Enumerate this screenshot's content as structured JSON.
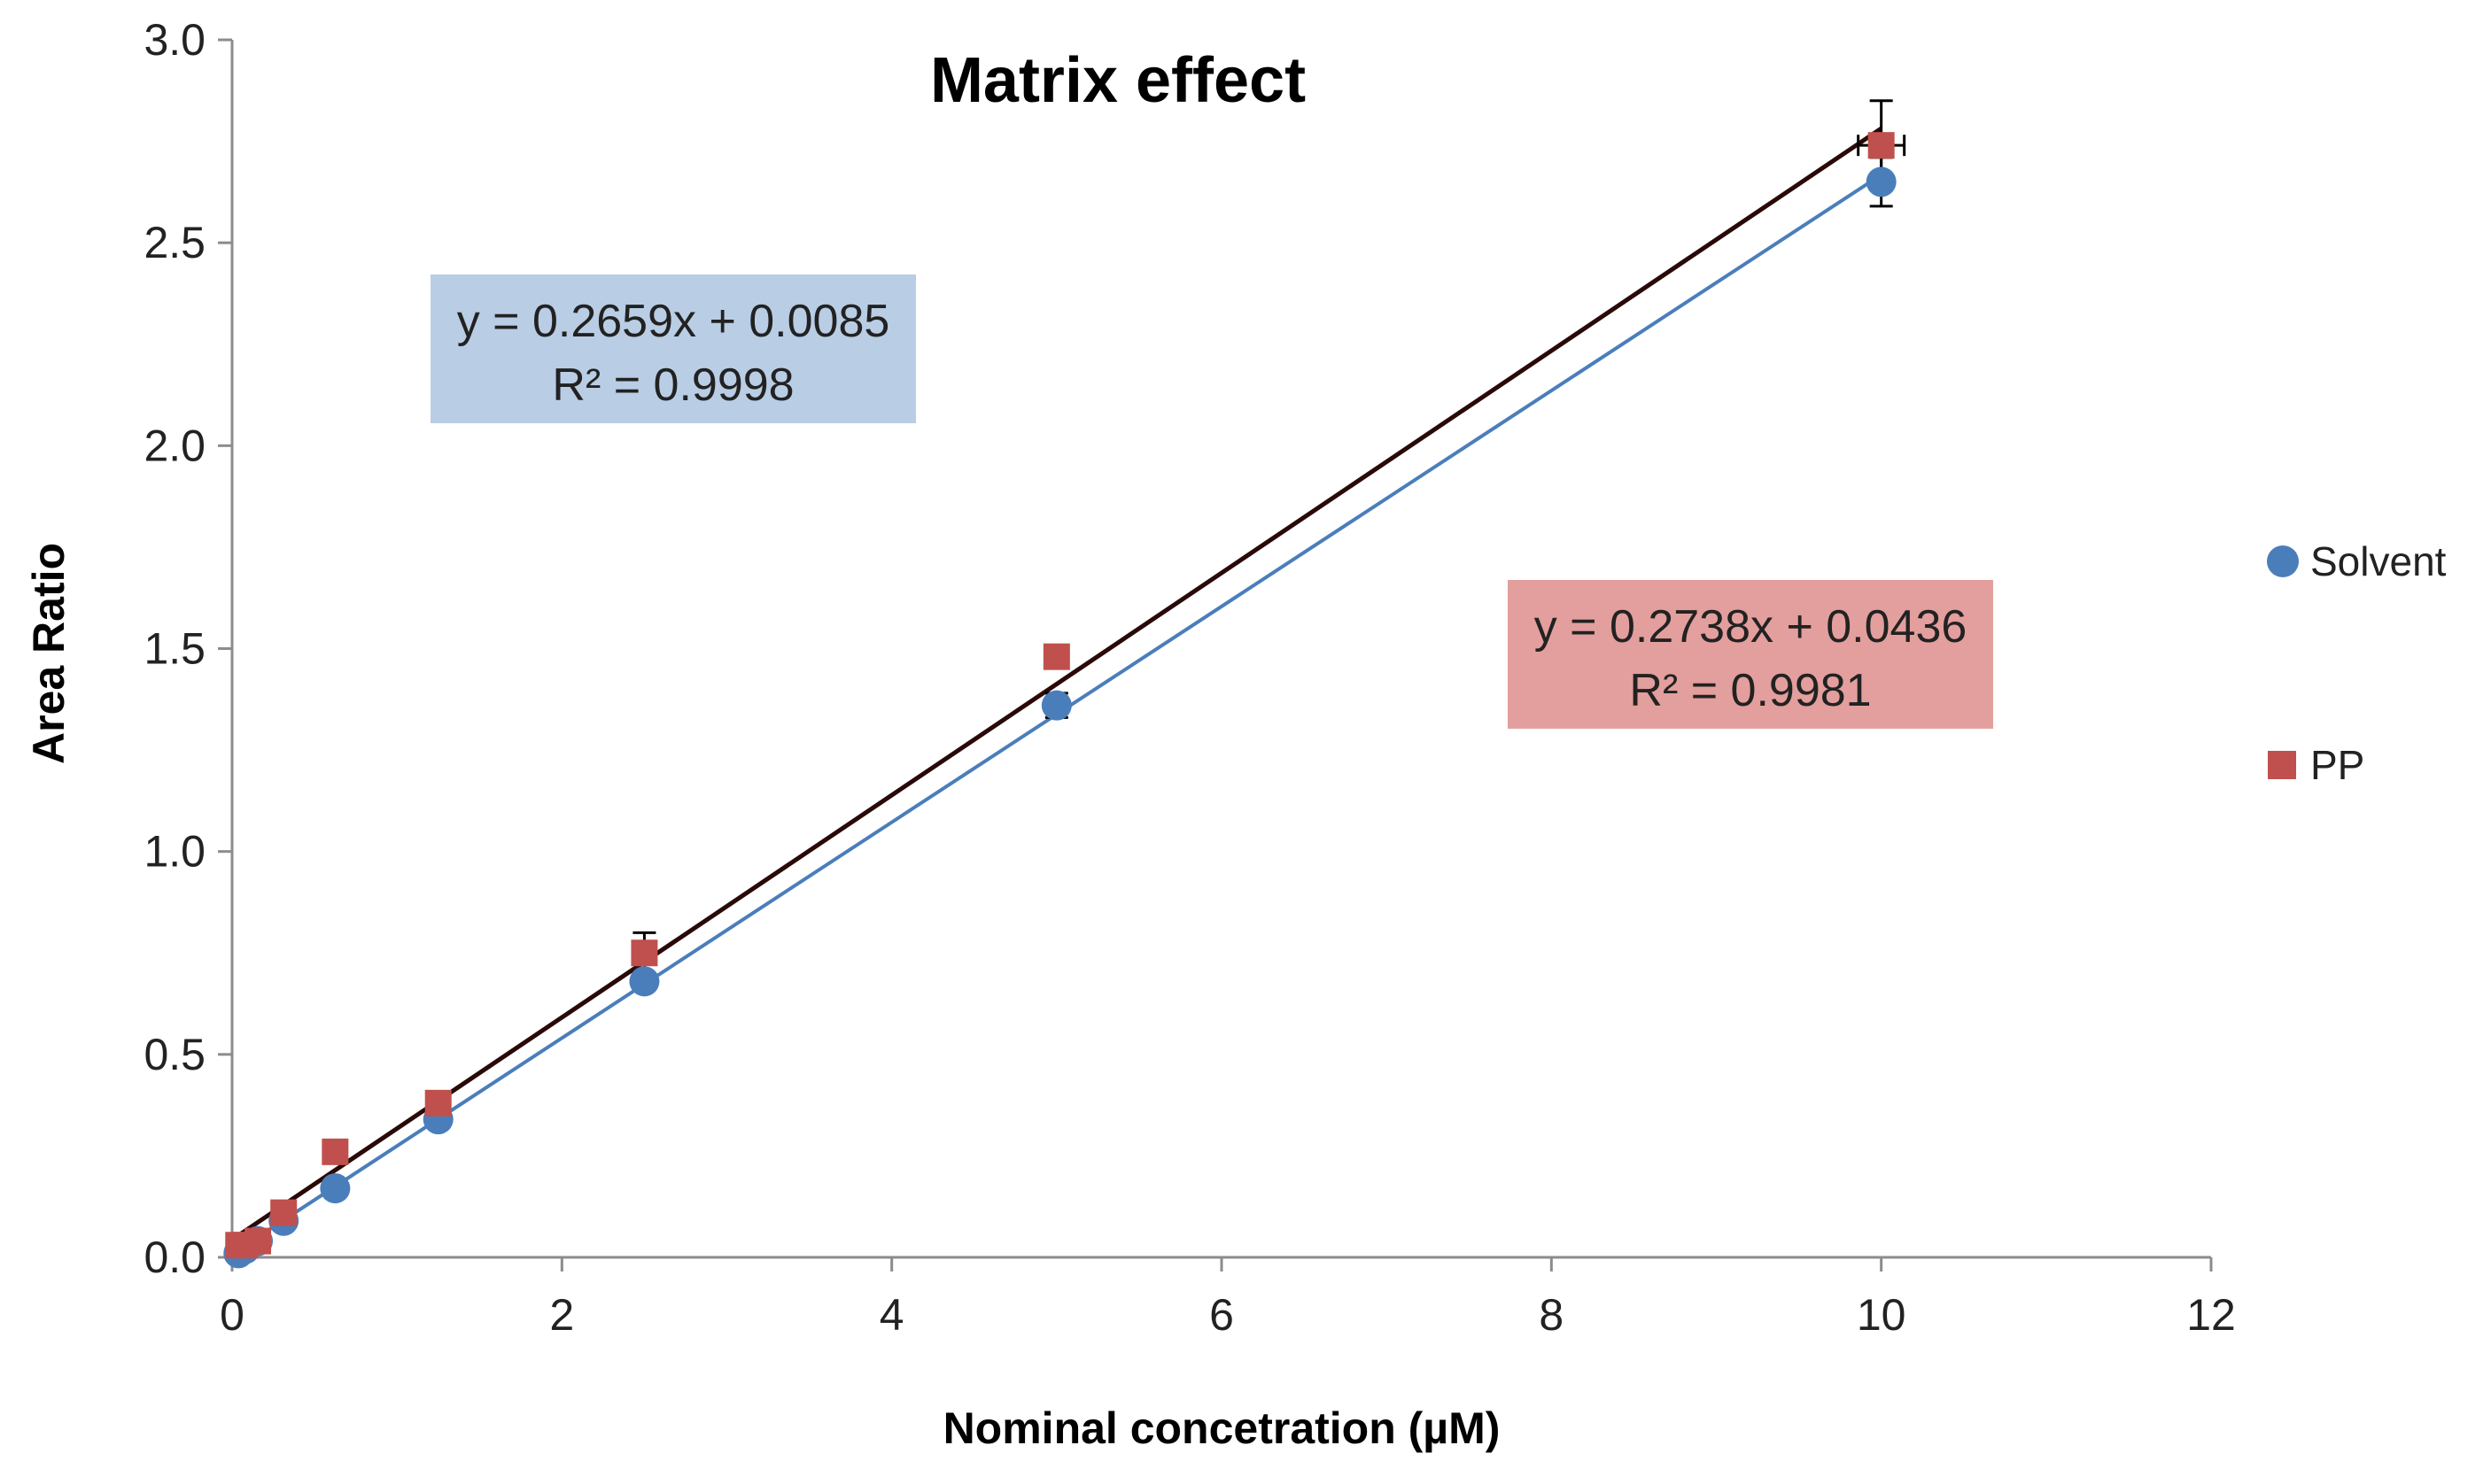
{
  "chart_data": {
    "type": "scatter",
    "title": "Matrix effect",
    "xlabel": "Nominal concetration (µM)",
    "ylabel": "Area Ratio",
    "xlim": [
      0,
      12
    ],
    "ylim": [
      0,
      3.0
    ],
    "xticks": [
      0,
      2,
      4,
      6,
      8,
      10,
      12
    ],
    "yticks": [
      0.0,
      0.5,
      1.0,
      1.5,
      2.0,
      2.5,
      3.0
    ],
    "xtick_labels": [
      "0",
      "2",
      "4",
      "6",
      "8",
      "10",
      "12"
    ],
    "ytick_labels": [
      "0.0",
      "0.5",
      "1.0",
      "1.5",
      "2.0",
      "2.5",
      "3.0"
    ],
    "grid": false,
    "legend_position": "right",
    "series": [
      {
        "name": "Solvent",
        "marker": "circle",
        "color": "#4a7ebb",
        "x": [
          0.039,
          0.078,
          0.156,
          0.3125,
          0.625,
          1.25,
          2.5,
          5,
          10
        ],
        "y": [
          0.01,
          0.02,
          0.04,
          0.09,
          0.17,
          0.34,
          0.68,
          1.36,
          2.65
        ],
        "error": [
          0,
          0,
          0,
          0,
          0,
          0,
          0,
          0.03,
          0.06
        ],
        "fit": {
          "slope": 0.2659,
          "intercept": 0.0085,
          "r2": 0.9998,
          "color": "#4a7ebb"
        },
        "equation_label": "y = 0.2659x + 0.0085",
        "r2_label": "R² = 0.9998",
        "box_color": "#b9cde5"
      },
      {
        "name": "PP",
        "marker": "square",
        "color": "#c0504d",
        "x": [
          0.039,
          0.078,
          0.156,
          0.3125,
          0.625,
          1.25,
          2.5,
          5,
          10
        ],
        "y": [
          0.03,
          0.03,
          0.04,
          0.11,
          0.26,
          0.38,
          0.75,
          1.48,
          2.74
        ],
        "error": [
          0,
          0,
          0,
          0,
          0,
          0,
          0.05,
          0,
          0.11
        ],
        "fit": {
          "slope": 0.2738,
          "intercept": 0.0436,
          "r2": 0.9981,
          "color": "#2a0a08"
        },
        "equation_label": "y = 0.2738x + 0.0436",
        "r2_label": "R² = 0.9981",
        "box_color": "#e39f9d"
      }
    ]
  }
}
